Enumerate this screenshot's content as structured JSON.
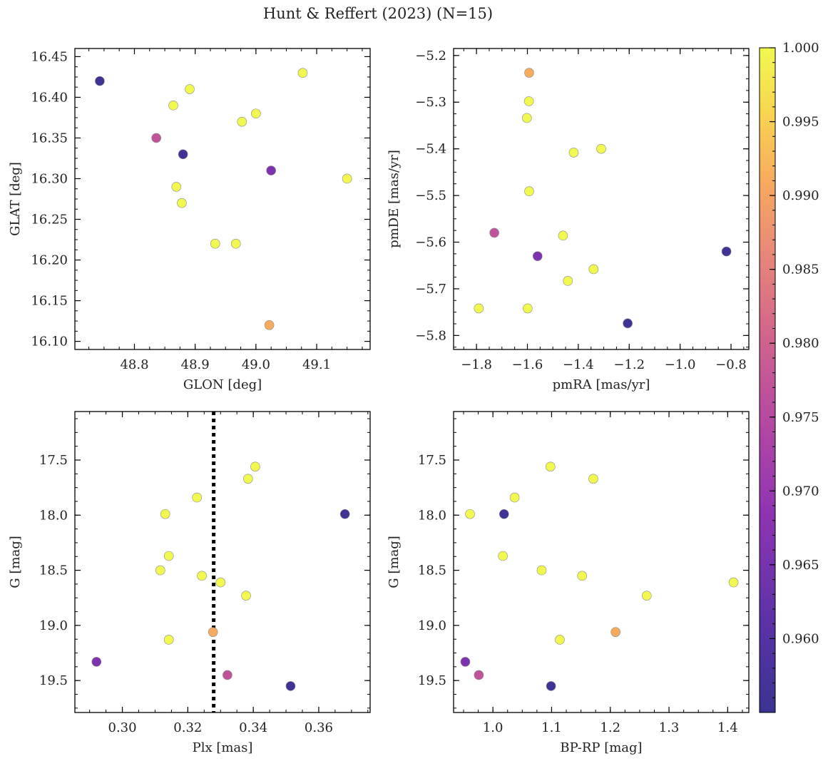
{
  "figure": {
    "title": "Hunt & Reffert (2023) (N=15)"
  },
  "colors": {
    "colormap": "plasma",
    "dotted_line": "#000000",
    "marker_edge": "#8a8a8a"
  },
  "colorbar": {
    "range": [
      0.955,
      1.0
    ],
    "ticks": [
      0.96,
      0.965,
      0.97,
      0.975,
      0.98,
      0.985,
      0.99,
      0.995,
      1.0
    ],
    "tick_labels": [
      "0.960",
      "0.965",
      "0.970",
      "0.975",
      "0.980",
      "0.985",
      "0.990",
      "0.995",
      "1.000"
    ]
  },
  "chart_data": [
    {
      "type": "scatter",
      "id": "position",
      "xlabel": "GLON [deg]",
      "ylabel": "GLAT [deg]",
      "xlim": [
        48.702,
        49.188
      ],
      "ylim": [
        16.09,
        16.46
      ],
      "y_inverted": false,
      "xticks": [
        48.8,
        48.9,
        49.0,
        49.1
      ],
      "xtick_labels": [
        "48.8",
        "48.9",
        "49.0",
        "49.1"
      ],
      "yticks": [
        16.1,
        16.15,
        16.2,
        16.25,
        16.3,
        16.35,
        16.4,
        16.45
      ],
      "ytick_labels": [
        "16.10",
        "16.15",
        "16.20",
        "16.25",
        "16.30",
        "16.35",
        "16.40",
        "16.45"
      ],
      "points": [
        {
          "x": 48.743,
          "y": 16.42,
          "c": 0.956
        },
        {
          "x": 48.836,
          "y": 16.35,
          "c": 0.977
        },
        {
          "x": 48.864,
          "y": 16.39,
          "c": 1.0
        },
        {
          "x": 48.869,
          "y": 16.29,
          "c": 1.0
        },
        {
          "x": 48.878,
          "y": 16.27,
          "c": 1.0
        },
        {
          "x": 48.88,
          "y": 16.33,
          "c": 0.956
        },
        {
          "x": 48.891,
          "y": 16.41,
          "c": 1.0
        },
        {
          "x": 48.933,
          "y": 16.22,
          "c": 1.0
        },
        {
          "x": 48.967,
          "y": 16.22,
          "c": 1.0
        },
        {
          "x": 48.977,
          "y": 16.37,
          "c": 1.0
        },
        {
          "x": 49.0,
          "y": 16.38,
          "c": 1.0
        },
        {
          "x": 49.022,
          "y": 16.12,
          "c": 0.991
        },
        {
          "x": 49.025,
          "y": 16.31,
          "c": 0.966
        },
        {
          "x": 49.077,
          "y": 16.43,
          "c": 1.0
        },
        {
          "x": 49.15,
          "y": 16.3,
          "c": 1.0
        }
      ]
    },
    {
      "type": "scatter",
      "id": "proper-motion",
      "xlabel": "pmRA [mas/yr]",
      "ylabel": "pmDE [mas/yr]",
      "xlim": [
        -1.89,
        -0.73
      ],
      "ylim": [
        -5.83,
        -5.185
      ],
      "y_inverted": false,
      "xticks": [
        -1.8,
        -1.6,
        -1.4,
        -1.2,
        -1.0,
        -0.8
      ],
      "xtick_labels": [
        "−1.8",
        "−1.6",
        "−1.4",
        "−1.2",
        "−1.0",
        "−0.8"
      ],
      "yticks": [
        -5.8,
        -5.7,
        -5.6,
        -5.5,
        -5.4,
        -5.3,
        -5.2
      ],
      "ytick_labels": [
        "−5.8",
        "−5.7",
        "−5.6",
        "−5.5",
        "−5.4",
        "−5.3",
        "−5.2"
      ],
      "points": [
        {
          "x": -1.791,
          "y": -5.742,
          "c": 1.0
        },
        {
          "x": -1.73,
          "y": -5.58,
          "c": 0.977
        },
        {
          "x": -1.602,
          "y": -5.334,
          "c": 1.0
        },
        {
          "x": -1.599,
          "y": -5.742,
          "c": 1.0
        },
        {
          "x": -1.594,
          "y": -5.298,
          "c": 1.0
        },
        {
          "x": -1.593,
          "y": -5.237,
          "c": 0.991
        },
        {
          "x": -1.593,
          "y": -5.491,
          "c": 1.0
        },
        {
          "x": -1.56,
          "y": -5.63,
          "c": 0.966
        },
        {
          "x": -1.46,
          "y": -5.586,
          "c": 1.0
        },
        {
          "x": -1.441,
          "y": -5.683,
          "c": 1.0
        },
        {
          "x": -1.418,
          "y": -5.408,
          "c": 1.0
        },
        {
          "x": -1.34,
          "y": -5.658,
          "c": 1.0
        },
        {
          "x": -1.31,
          "y": -5.4,
          "c": 1.0
        },
        {
          "x": -1.206,
          "y": -5.774,
          "c": 0.956
        },
        {
          "x": -0.818,
          "y": -5.62,
          "c": 0.956
        }
      ]
    },
    {
      "type": "scatter",
      "id": "plx-cmd",
      "xlabel": "Plx [mas]",
      "ylabel": "G [mag]",
      "xlim": [
        0.2855,
        0.3757
      ],
      "ylim": [
        19.79,
        17.06
      ],
      "y_inverted": true,
      "vline": {
        "x": 0.3279,
        "style": "dotted"
      },
      "xticks": [
        0.3,
        0.32,
        0.34,
        0.36
      ],
      "xtick_labels": [
        "0.30",
        "0.32",
        "0.34",
        "0.36"
      ],
      "yticks": [
        17.5,
        18.0,
        18.5,
        19.0,
        19.5
      ],
      "ytick_labels": [
        "17.5",
        "18.0",
        "18.5",
        "19.0",
        "19.5"
      ],
      "points": [
        {
          "x": 0.2921,
          "y": 19.33,
          "c": 0.966
        },
        {
          "x": 0.3116,
          "y": 18.5,
          "c": 1.0
        },
        {
          "x": 0.3131,
          "y": 17.99,
          "c": 1.0
        },
        {
          "x": 0.3142,
          "y": 18.37,
          "c": 1.0
        },
        {
          "x": 0.3142,
          "y": 19.13,
          "c": 1.0
        },
        {
          "x": 0.3228,
          "y": 17.84,
          "c": 1.0
        },
        {
          "x": 0.3243,
          "y": 18.55,
          "c": 1.0
        },
        {
          "x": 0.3277,
          "y": 19.06,
          "c": 0.991
        },
        {
          "x": 0.33,
          "y": 18.61,
          "c": 1.0
        },
        {
          "x": 0.3321,
          "y": 19.45,
          "c": 0.977
        },
        {
          "x": 0.3378,
          "y": 18.73,
          "c": 1.0
        },
        {
          "x": 0.3384,
          "y": 17.67,
          "c": 1.0
        },
        {
          "x": 0.3406,
          "y": 17.56,
          "c": 1.0
        },
        {
          "x": 0.3514,
          "y": 19.55,
          "c": 0.956
        },
        {
          "x": 0.368,
          "y": 17.99,
          "c": 0.956
        }
      ]
    },
    {
      "type": "scatter",
      "id": "color-cmd",
      "xlabel": "BP-RP [mag]",
      "ylabel": "G [mag]",
      "xlim": [
        0.933,
        1.436
      ],
      "ylim": [
        19.79,
        17.06
      ],
      "y_inverted": true,
      "xticks": [
        1.0,
        1.1,
        1.2,
        1.3,
        1.4
      ],
      "xtick_labels": [
        "1.0",
        "1.1",
        "1.2",
        "1.3",
        "1.4"
      ],
      "yticks": [
        17.5,
        18.0,
        18.5,
        19.0,
        19.5
      ],
      "ytick_labels": [
        "17.5",
        "18.0",
        "18.5",
        "19.0",
        "19.5"
      ],
      "points": [
        {
          "x": 0.953,
          "y": 19.33,
          "c": 0.966
        },
        {
          "x": 0.961,
          "y": 17.99,
          "c": 1.0
        },
        {
          "x": 0.976,
          "y": 19.45,
          "c": 0.977
        },
        {
          "x": 1.017,
          "y": 18.37,
          "c": 1.0
        },
        {
          "x": 1.019,
          "y": 17.99,
          "c": 0.956
        },
        {
          "x": 1.037,
          "y": 17.84,
          "c": 1.0
        },
        {
          "x": 1.083,
          "y": 18.5,
          "c": 1.0
        },
        {
          "x": 1.098,
          "y": 17.56,
          "c": 1.0
        },
        {
          "x": 1.099,
          "y": 19.55,
          "c": 0.956
        },
        {
          "x": 1.114,
          "y": 19.13,
          "c": 1.0
        },
        {
          "x": 1.152,
          "y": 18.55,
          "c": 1.0
        },
        {
          "x": 1.171,
          "y": 17.67,
          "c": 1.0
        },
        {
          "x": 1.209,
          "y": 19.06,
          "c": 0.991
        },
        {
          "x": 1.262,
          "y": 18.73,
          "c": 1.0
        },
        {
          "x": 1.41,
          "y": 18.61,
          "c": 1.0
        }
      ]
    }
  ]
}
